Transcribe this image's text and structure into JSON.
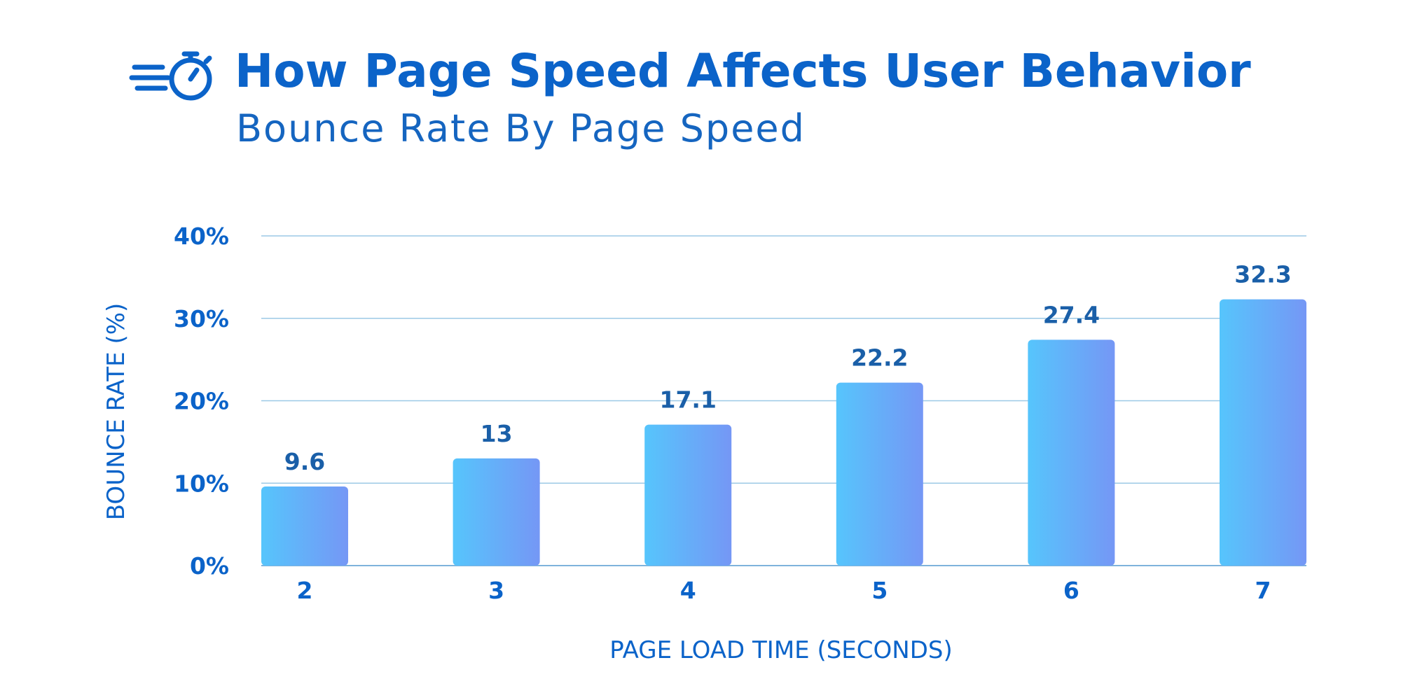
{
  "header": {
    "icon": "stopwatch-speed-icon",
    "title": "How Page Speed Affects User Behavior",
    "subtitle": "Bounce Rate By Page Speed"
  },
  "chart_data": {
    "type": "bar",
    "title": "How Page Speed Affects User Behavior",
    "subtitle": "Bounce Rate By Page Speed",
    "xlabel": "PAGE LOAD TIME (SECONDS)",
    "ylabel": "BOUNCE RATE (%)",
    "categories": [
      "2",
      "3",
      "4",
      "5",
      "6",
      "7"
    ],
    "values": [
      9.6,
      13,
      17.1,
      22.2,
      27.4,
      32.3
    ],
    "value_labels": [
      "9.6",
      "13",
      "17.1",
      "22.2",
      "27.4",
      "32.3"
    ],
    "ylim": [
      0,
      40
    ],
    "yticks": [
      0,
      10,
      20,
      30,
      40
    ],
    "ytick_labels": [
      "0%",
      "10%",
      "20%",
      "30%",
      "40%"
    ],
    "grid": true,
    "legend": "none",
    "colors": {
      "bar_start": "#56c5fc",
      "bar_end": "#7597f5",
      "text": "#0b63c9",
      "grid": "#9cc9e6"
    }
  }
}
